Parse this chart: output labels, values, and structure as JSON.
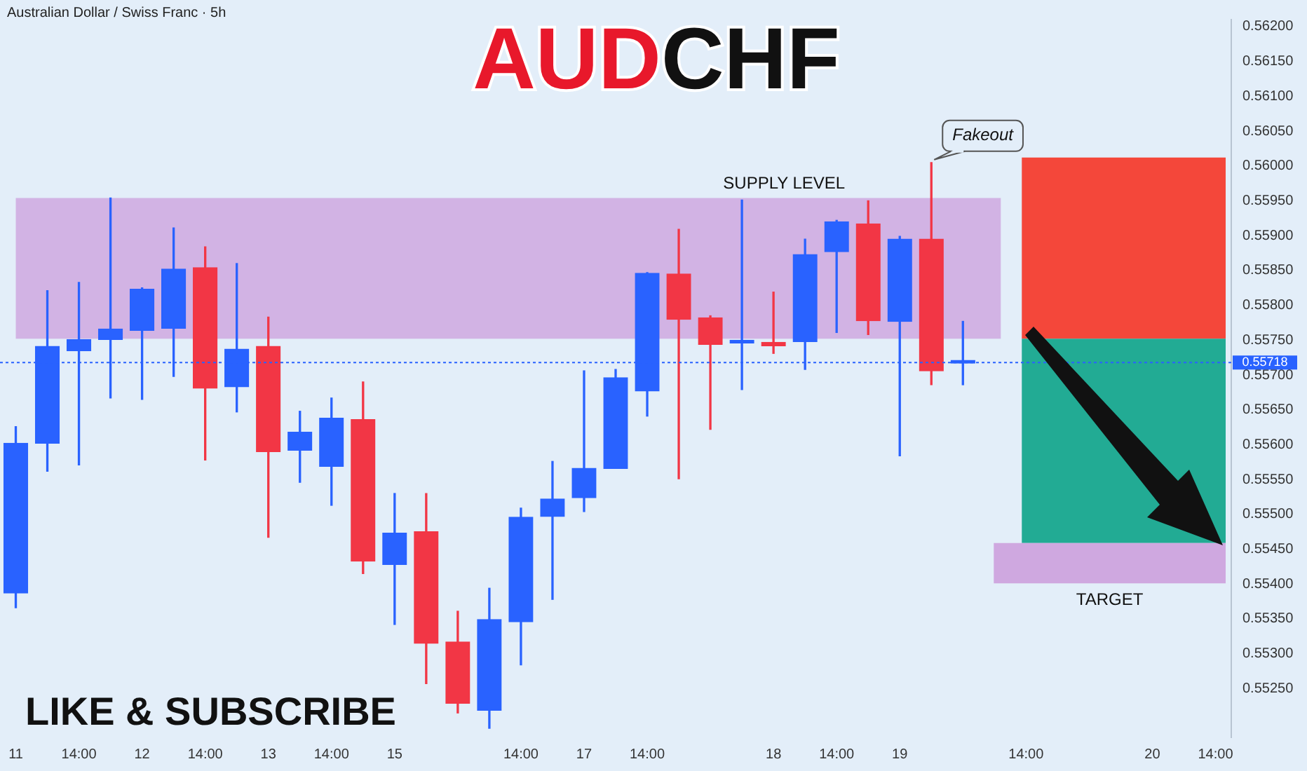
{
  "chart_data": {
    "type": "candlestick",
    "title": "AUDCHF",
    "subtitle": "Australian Dollar / Swiss Franc · 5h",
    "categories": [
      "11",
      null,
      "14:00",
      null,
      "12",
      null,
      "14:00",
      null,
      "13",
      null,
      "14:00",
      null,
      "15",
      null,
      null,
      null,
      "14:00",
      null,
      "17",
      null,
      "14:00",
      null,
      null,
      null,
      "18",
      null,
      "14:00",
      null,
      "19",
      null,
      null,
      null,
      "14:00",
      null,
      null,
      null,
      "20",
      null,
      "14:00"
    ],
    "ohlc": [
      [
        0.55387,
        0.55626,
        0.55366,
        0.55602
      ],
      [
        0.55602,
        0.55821,
        0.55562,
        0.55741
      ],
      [
        0.55735,
        0.55833,
        0.55571,
        0.55751
      ],
      [
        0.55751,
        0.55954,
        0.55667,
        0.55766
      ],
      [
        0.55764,
        0.55825,
        0.55665,
        0.55823
      ],
      [
        0.55767,
        0.55911,
        0.55698,
        0.55852
      ],
      [
        0.55854,
        0.55884,
        0.55578,
        0.55681
      ],
      [
        0.55683,
        0.5586,
        0.55647,
        0.55737
      ],
      [
        0.55741,
        0.55783,
        0.55467,
        0.5559
      ],
      [
        0.55592,
        0.55648,
        0.55546,
        0.55618
      ],
      [
        0.55569,
        0.55667,
        0.55513,
        0.55638
      ],
      [
        0.55636,
        0.5569,
        0.55415,
        0.55433
      ],
      [
        0.55428,
        0.5553,
        0.55342,
        0.55473
      ],
      [
        0.55475,
        0.5553,
        0.55257,
        0.55315
      ],
      [
        0.55317,
        0.55361,
        0.55215,
        0.55229
      ],
      [
        0.55219,
        0.55394,
        0.55193,
        0.55349
      ],
      [
        0.55346,
        0.55509,
        0.55284,
        0.55496
      ],
      [
        0.55497,
        0.55576,
        0.55378,
        0.55522
      ],
      [
        0.55524,
        0.55706,
        0.55504,
        0.55566
      ],
      [
        0.55566,
        0.55708,
        0.55566,
        0.55696
      ],
      [
        0.55677,
        0.55847,
        0.55641,
        0.55846
      ],
      [
        0.55845,
        0.55909,
        0.55551,
        0.5578
      ],
      [
        0.55782,
        0.55785,
        0.55622,
        0.55744
      ],
      [
        0.55746,
        0.55951,
        0.55679,
        0.55747
      ],
      [
        0.55747,
        0.55819,
        0.55731,
        0.55742
      ],
      [
        0.55748,
        0.55895,
        0.55708,
        0.55873
      ],
      [
        0.55877,
        0.55922,
        0.55761,
        0.5592
      ],
      [
        0.55917,
        0.5595,
        0.55758,
        0.55778
      ],
      [
        0.55777,
        0.55899,
        0.55584,
        0.55895
      ],
      [
        0.55895,
        0.56005,
        0.55686,
        0.55706
      ],
      [
        0.55717,
        0.55777,
        0.55686,
        0.55718
      ],
      null,
      null,
      null,
      null,
      null,
      null,
      null,
      null
    ],
    "colors": [
      "#2962ff",
      "#2962ff",
      "#2962ff",
      "#2962ff",
      "#2962ff",
      "#2962ff",
      "#f23645",
      "#2962ff",
      "#f23645",
      "#2962ff",
      "#2962ff",
      "#f23645",
      "#2962ff",
      "#f23645",
      "#f23645",
      "#2962ff",
      "#2962ff",
      "#2962ff",
      "#2962ff",
      "#2962ff",
      "#2962ff",
      "#f23645",
      "#f23645",
      "#2962ff",
      "#f23645",
      "#2962ff",
      "#2962ff",
      "#f23645",
      "#2962ff",
      "#f23645",
      "#2962ff",
      null,
      null,
      null,
      null,
      null,
      null,
      null,
      null
    ],
    "ylim": [
      0.5518,
      0.5621
    ],
    "yticks": [
      {
        "value": 0.5525,
        "label": "0.55250"
      },
      {
        "value": 0.553,
        "label": "0.55300"
      },
      {
        "value": 0.5535,
        "label": "0.55350"
      },
      {
        "value": 0.554,
        "label": "0.55400"
      },
      {
        "value": 0.5545,
        "label": "0.55450"
      },
      {
        "value": 0.555,
        "label": "0.55500"
      },
      {
        "value": 0.5555,
        "label": "0.55550"
      },
      {
        "value": 0.556,
        "label": "0.55600"
      },
      {
        "value": 0.5565,
        "label": "0.55650"
      },
      {
        "value": 0.557,
        "label": "0.55700"
      },
      {
        "value": 0.5575,
        "label": "0.55750"
      },
      {
        "value": 0.558,
        "label": "0.55800"
      },
      {
        "value": 0.5585,
        "label": "0.55850"
      },
      {
        "value": 0.559,
        "label": "0.55900"
      },
      {
        "value": 0.5595,
        "label": "0.55950"
      },
      {
        "value": 0.56,
        "label": "0.56000"
      },
      {
        "value": 0.5605,
        "label": "0.56050"
      },
      {
        "value": 0.561,
        "label": "0.56100"
      },
      {
        "value": 0.5615,
        "label": "0.56150"
      },
      {
        "value": 0.562,
        "label": "0.56200"
      }
    ],
    "bands": [
      {
        "axis": "y",
        "from": 0.55752,
        "to": 0.55954,
        "label": "SUPPLY LEVEL",
        "color": "#cfa8e0"
      },
      {
        "axis": "y",
        "from": 0.55752,
        "to": 0.56012,
        "color": "#f4473a"
      },
      {
        "axis": "y",
        "from": 0.55459,
        "to": 0.55752,
        "color": "#22ab94"
      },
      {
        "axis": "y",
        "from": 0.55401,
        "to": 0.55459,
        "label": "TARGET",
        "color": "#cfa8e0"
      }
    ],
    "ref_lines": [
      {
        "axis": "y",
        "value": 0.55718,
        "label": "0.55718",
        "color": "#2962ff"
      }
    ],
    "annotations": [
      "Fakeout",
      "LIKE & SUBSCRIBE"
    ],
    "grid": false,
    "legend": false
  }
}
